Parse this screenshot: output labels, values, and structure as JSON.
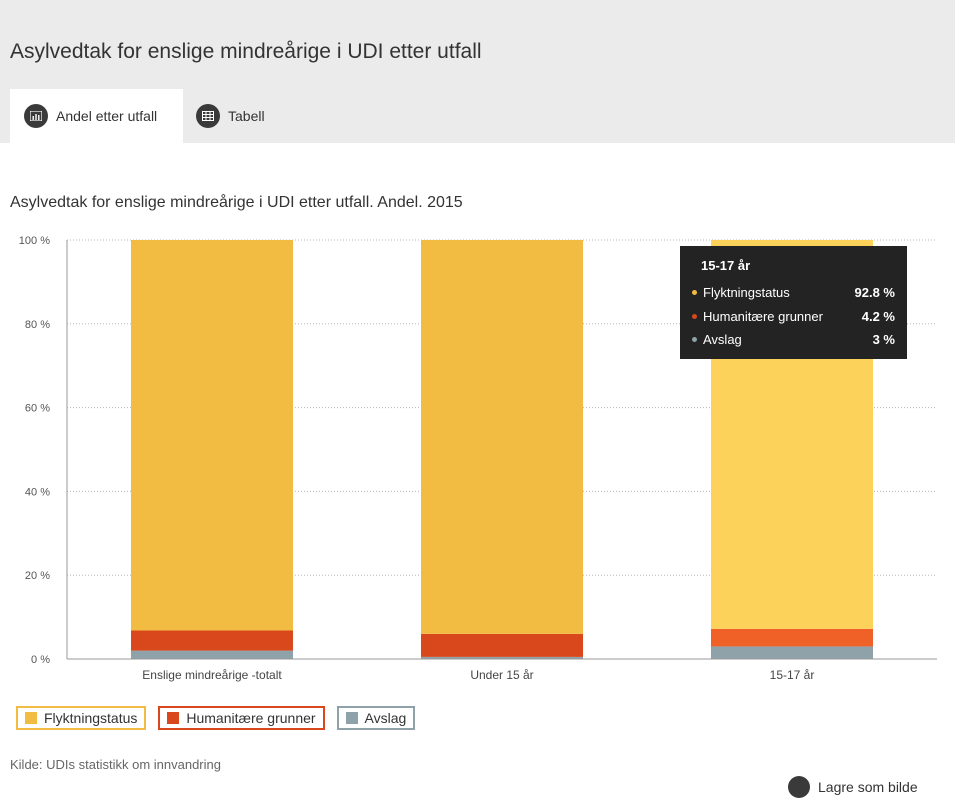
{
  "header": {
    "title": "Asylvedtak for enslige mindreårige i UDI etter utfall",
    "tabs": [
      {
        "label": "Andel etter utfall",
        "icon": "bar-chart-icon",
        "active": true
      },
      {
        "label": "Tabell",
        "icon": "table-icon",
        "active": false
      }
    ]
  },
  "chart_data": {
    "type": "bar",
    "stacked": true,
    "title": "Asylvedtak for enslige mindreårige i UDI etter utfall. Andel. 2015",
    "categories": [
      "Enslige mindreårige -totalt",
      "Under 15 år",
      "15-17 år"
    ],
    "series": [
      {
        "name": "Avslag",
        "values": [
          2,
          0.5,
          3
        ],
        "color": "#8fa1a9"
      },
      {
        "name": "Humanitære grunner",
        "values": [
          4.8,
          5.5,
          4.2
        ],
        "color": "#d9471c"
      },
      {
        "name": "Flyktningstatus",
        "values": [
          93.2,
          94,
          92.8
        ],
        "color": "#f2bb42"
      }
    ],
    "highlight_colors": {
      "Flyktningstatus": "#fdd25a",
      "Humanitære grunner": "#f06128",
      "Avslag": "#8fa1a9"
    },
    "highlight_category": "15-17 år",
    "ylim": [
      0,
      100
    ],
    "yticks": [
      "0 %",
      "20 %",
      "40 %",
      "60 %",
      "80 %",
      "100 %"
    ],
    "grid": true,
    "legend_position": "bottom-left"
  },
  "legend": [
    {
      "label": "Flyktningstatus",
      "color": "#f2bb42"
    },
    {
      "label": "Humanitære grunner",
      "color": "#d9471c"
    },
    {
      "label": "Avslag",
      "color": "#8fa1a9"
    }
  ],
  "tooltip": {
    "title": "15-17 år",
    "rows": [
      {
        "label": "Flyktningstatus",
        "value": "92.8 %",
        "color": "#f2bb42"
      },
      {
        "label": "Humanitære grunner",
        "value": "4.2 %",
        "color": "#d9471c"
      },
      {
        "label": "Avslag",
        "value": "3 %",
        "color": "#8fa1a9"
      }
    ]
  },
  "source": "Kilde: UDIs statistikk om innvandring",
  "save_label": "Lagre som bilde"
}
